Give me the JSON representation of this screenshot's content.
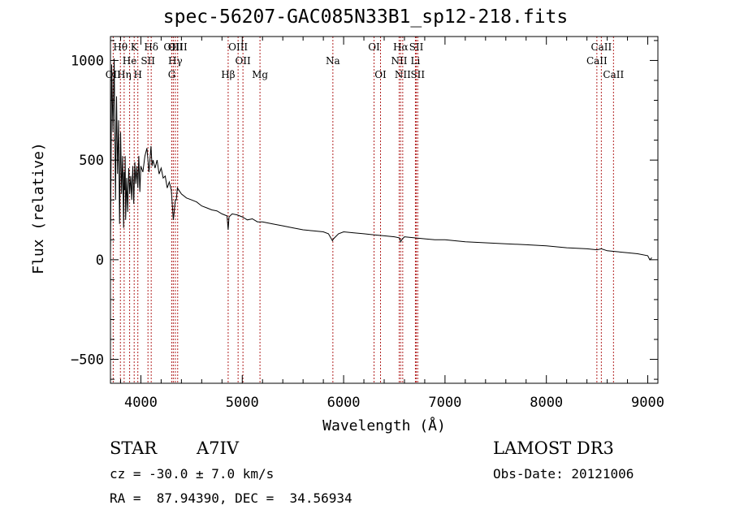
{
  "title": "spec-56207-GAC085N33B1_sp12-218.fits",
  "footer": {
    "class_label": "STAR",
    "subclass": "A7IV",
    "survey": "LAMOST DR3",
    "cz": "cz = -30.0 ± 7.0 km/s",
    "obs_date": "Obs-Date: 20121006",
    "coords": "RA =  87.94390, DEC =  34.56934"
  },
  "colors": {
    "line_marker": "#b22222",
    "spectrum": "#000000",
    "axis": "#000000"
  },
  "chart_data": {
    "type": "line",
    "title": "spec-56207-GAC085N33B1_sp12-218.fits",
    "xlabel": "Wavelength (Å)",
    "ylabel": "Flux (relative)",
    "xlim": [
      3700,
      9100
    ],
    "ylim": [
      -620,
      1120
    ],
    "x_ticks": [
      4000,
      5000,
      6000,
      7000,
      8000,
      9000
    ],
    "x_tick_labels": [
      "4000",
      "5000",
      "6000",
      "7000",
      "8000",
      "9000"
    ],
    "y_ticks": [
      -500,
      0,
      500,
      1000
    ],
    "y_tick_labels": [
      "−500",
      "0",
      "500",
      "1000"
    ],
    "series": [
      {
        "name": "spectrum",
        "x": [
          3700,
          3712,
          3725,
          3737,
          3750,
          3760,
          3770,
          3780,
          3790,
          3800,
          3810,
          3820,
          3830,
          3835,
          3840,
          3845,
          3850,
          3860,
          3870,
          3880,
          3890,
          3900,
          3910,
          3920,
          3930,
          3940,
          3950,
          3960,
          3970,
          3980,
          3990,
          4000,
          4020,
          4040,
          4060,
          4080,
          4100,
          4110,
          4120,
          4140,
          4160,
          4180,
          4200,
          4220,
          4240,
          4260,
          4280,
          4300,
          4320,
          4340,
          4350,
          4360,
          4380,
          4400,
          4450,
          4500,
          4550,
          4600,
          4650,
          4700,
          4750,
          4800,
          4850,
          4861,
          4870,
          4900,
          4950,
          5000,
          5050,
          5100,
          5150,
          5200,
          5300,
          5400,
          5500,
          5600,
          5700,
          5800,
          5850,
          5890,
          5900,
          5950,
          6000,
          6100,
          6200,
          6300,
          6400,
          6500,
          6550,
          6563,
          6580,
          6600,
          6700,
          6800,
          6900,
          7000,
          7200,
          7400,
          7600,
          7800,
          8000,
          8200,
          8400,
          8500,
          8542,
          8600,
          8700,
          8800,
          8900,
          9000,
          9020,
          9040
        ],
        "y": [
          20,
          980,
          640,
          1010,
          300,
          820,
          430,
          700,
          180,
          640,
          330,
          520,
          160,
          440,
          350,
          520,
          200,
          410,
          240,
          460,
          330,
          420,
          300,
          470,
          280,
          490,
          380,
          470,
          360,
          520,
          340,
          470,
          440,
          520,
          560,
          440,
          570,
          470,
          500,
          460,
          500,
          430,
          460,
          410,
          420,
          360,
          390,
          350,
          200,
          300,
          300,
          360,
          345,
          330,
          310,
          300,
          290,
          270,
          260,
          250,
          245,
          230,
          220,
          150,
          215,
          230,
          225,
          215,
          200,
          205,
          190,
          190,
          180,
          170,
          160,
          150,
          145,
          140,
          130,
          95,
          105,
          130,
          140,
          135,
          130,
          125,
          120,
          115,
          110,
          90,
          105,
          115,
          110,
          105,
          100,
          100,
          90,
          85,
          80,
          75,
          70,
          60,
          55,
          50,
          55,
          45,
          40,
          35,
          30,
          20,
          0,
          10
        ]
      }
    ],
    "line_markers": [
      {
        "name": "Hθ",
        "x": 3798,
        "row": 1
      },
      {
        "name": "OII",
        "x": 3727,
        "row": 3
      },
      {
        "name": "Hη",
        "x": 3835,
        "row": 3
      },
      {
        "name": "He",
        "x": 3889,
        "row": 2
      },
      {
        "name": "K",
        "x": 3934,
        "row": 1
      },
      {
        "name": "H",
        "x": 3970,
        "row": 3
      },
      {
        "name": "SII",
        "x": 4070,
        "row": 2
      },
      {
        "name": "Hδ",
        "x": 4102,
        "row": 1
      },
      {
        "name": "OIII",
        "x": 4320,
        "row": 1
      },
      {
        "name": "Hγ",
        "x": 4340,
        "row": 2
      },
      {
        "name": "G",
        "x": 4305,
        "row": 3
      },
      {
        "name": "OIII",
        "x": 4363,
        "row": 1
      },
      {
        "name": "Hβ",
        "x": 4861,
        "row": 3
      },
      {
        "name": "OIII",
        "x": 4959,
        "row": 1
      },
      {
        "name": "OII",
        "x": 5007,
        "row": 2
      },
      {
        "name": "Mg",
        "x": 5175,
        "row": 3
      },
      {
        "name": "Na",
        "x": 5894,
        "row": 2
      },
      {
        "name": "OI",
        "x": 6300,
        "row": 1
      },
      {
        "name": "OI",
        "x": 6364,
        "row": 3
      },
      {
        "name": "Hα",
        "x": 6563,
        "row": 1
      },
      {
        "name": "NII",
        "x": 6548,
        "row": 2
      },
      {
        "name": "NII",
        "x": 6583,
        "row": 3
      },
      {
        "name": "SII",
        "x": 6717,
        "row": 1
      },
      {
        "name": "Li",
        "x": 6708,
        "row": 2
      },
      {
        "name": "SII",
        "x": 6731,
        "row": 3
      },
      {
        "name": "CaII",
        "x": 8542,
        "row": 1
      },
      {
        "name": "CaII",
        "x": 8498,
        "row": 2
      },
      {
        "name": "CaII",
        "x": 8662,
        "row": 3
      }
    ]
  }
}
